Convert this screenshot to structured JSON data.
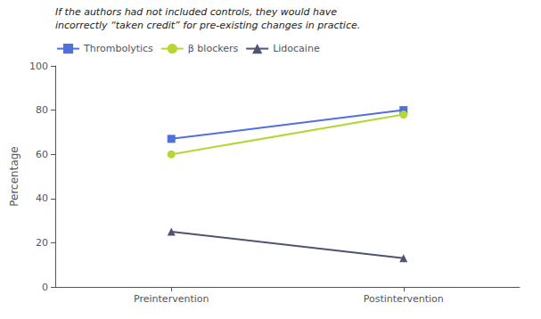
{
  "chart_data": {
    "type": "line",
    "categories": [
      "Preintervention",
      "Postintervention"
    ],
    "series": [
      {
        "name": "Thrombolytics",
        "marker": "square",
        "values": [
          67,
          80
        ]
      },
      {
        "name": "β blockers",
        "marker": "circle",
        "values": [
          60,
          78
        ]
      },
      {
        "name": "Lidocaine",
        "marker": "triangle",
        "values": [
          25,
          13
        ]
      }
    ],
    "ylabel": "Percentage",
    "ylim": [
      0,
      100
    ],
    "yticks": [
      0,
      20,
      40,
      60,
      80,
      100
    ],
    "annotation": "If the authors had not included controls, they would have\nincorrectly “taken credit” for pre-existing changes in practice.",
    "legend": "upper left",
    "grid": false
  }
}
